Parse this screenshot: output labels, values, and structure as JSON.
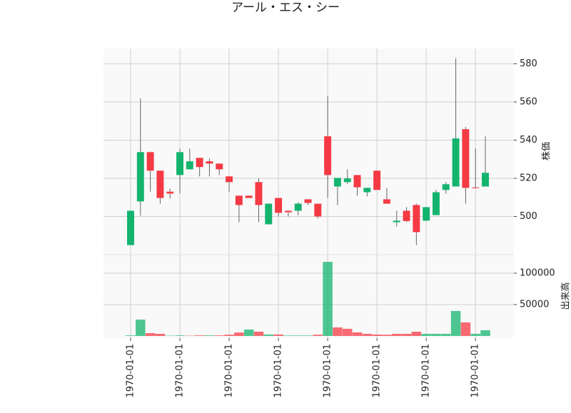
{
  "chart_data": {
    "type": "candlestick",
    "title": "アール・エス・シー",
    "ylabel": "株価",
    "y2label": "出来高",
    "categories": [
      "1970-01-01",
      null,
      null,
      null,
      null,
      "1970-01-01",
      null,
      null,
      null,
      null,
      "1970-01-01",
      null,
      null,
      null,
      null,
      "1970-01-01",
      null,
      null,
      null,
      null,
      "1970-01-01",
      null,
      null,
      null,
      null,
      "1970-01-01",
      null,
      null,
      null,
      null,
      "1970-01-01",
      null,
      null,
      null,
      null,
      "1970-01-01",
      null
    ],
    "open": [
      485,
      507.9,
      533.7,
      524,
      513,
      521.7,
      524.7,
      530.7,
      528.9,
      527.7,
      521,
      510.9,
      510.9,
      518,
      495.9,
      509.7,
      503,
      503,
      509,
      506.7,
      542,
      515.7,
      518,
      521.7,
      512.7,
      524,
      509,
      497,
      503,
      506,
      497.8,
      500.7,
      513.9,
      515.7,
      545.7,
      515.2,
      515.7
    ],
    "high": [
      503,
      561.9,
      534,
      524,
      514.6,
      535.6,
      535.6,
      530.7,
      530.4,
      527.7,
      521,
      510.9,
      510.9,
      519.9,
      506.7,
      509.7,
      503,
      507.5,
      509,
      506.7,
      563,
      520.2,
      524.7,
      521.7,
      515,
      524,
      515,
      503,
      504.9,
      506.7,
      504.9,
      513.9,
      518,
      582.9,
      546.9,
      535.6,
      542
    ],
    "low": [
      485,
      500.4,
      513,
      506.7,
      509.4,
      512,
      524.7,
      521,
      521,
      521.7,
      513,
      497,
      509.7,
      497,
      495.9,
      500,
      500,
      500.7,
      506,
      498.9,
      509.7,
      506,
      516.9,
      510.9,
      510.5,
      513.9,
      506.7,
      494.7,
      497,
      485,
      497.8,
      500.7,
      512,
      515.7,
      506.7,
      515,
      515.7
    ],
    "close": [
      503,
      533.7,
      524,
      509.7,
      512,
      533.7,
      528.9,
      525.9,
      527.7,
      524.7,
      518,
      506,
      509.7,
      506,
      506.7,
      501.9,
      502.2,
      506.7,
      507.1,
      500,
      521.7,
      520.2,
      519.9,
      515.3,
      515,
      513.9,
      506.7,
      497.8,
      497.6,
      491.8,
      504.9,
      512.7,
      516.9,
      540.9,
      515,
      515,
      522.9
    ],
    "volume": [
      1000,
      26000,
      4500,
      3400,
      500,
      1000,
      500,
      1000,
      1000,
      1000,
      2000,
      5500,
      10200,
      6800,
      2300,
      2300,
      800,
      800,
      800,
      2000,
      118000,
      13600,
      11400,
      5700,
      3400,
      2300,
      2000,
      3400,
      3400,
      6800,
      3400,
      3400,
      3400,
      39800,
      21600,
      3400,
      9100
    ],
    "ylim": [
      480,
      588
    ],
    "yticks": [
      500,
      520,
      540,
      560,
      580
    ],
    "y2lim": [
      -3400,
      129500
    ],
    "y2ticks": [
      50000,
      100000
    ],
    "up_color": "#14b46e",
    "down_color": "#f53a44",
    "grid": true
  }
}
